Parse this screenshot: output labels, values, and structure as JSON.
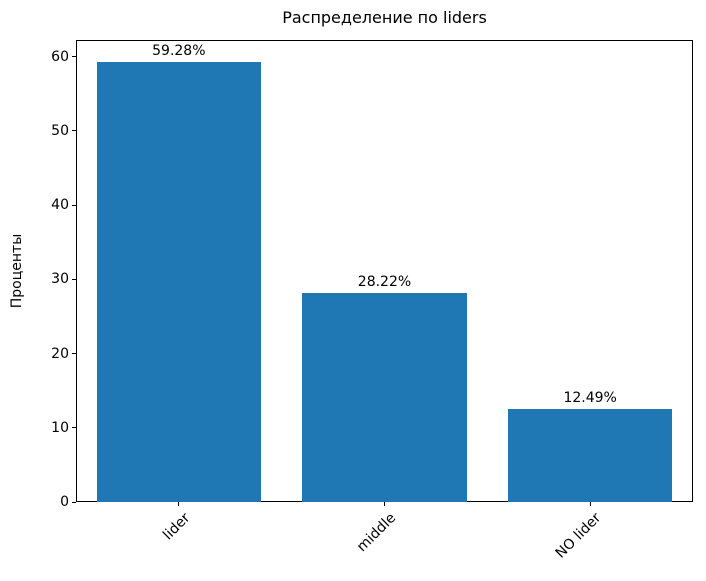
{
  "chart_data": {
    "type": "bar",
    "title": "Распределение по liders",
    "xlabel": "",
    "ylabel": "Проценты",
    "categories": [
      "lider",
      "middle",
      "NO lider"
    ],
    "values": [
      59.28,
      28.22,
      12.49
    ],
    "value_labels": [
      "59.28%",
      "28.22%",
      "12.49%"
    ],
    "yticks": [
      0,
      10,
      20,
      30,
      40,
      50,
      60
    ],
    "ylim": [
      0,
      62.244
    ],
    "bar_color": "#1f77b4",
    "bar_relative_width": 0.8,
    "grid": false,
    "legend": false,
    "x_tick_rotation_deg": 45
  }
}
